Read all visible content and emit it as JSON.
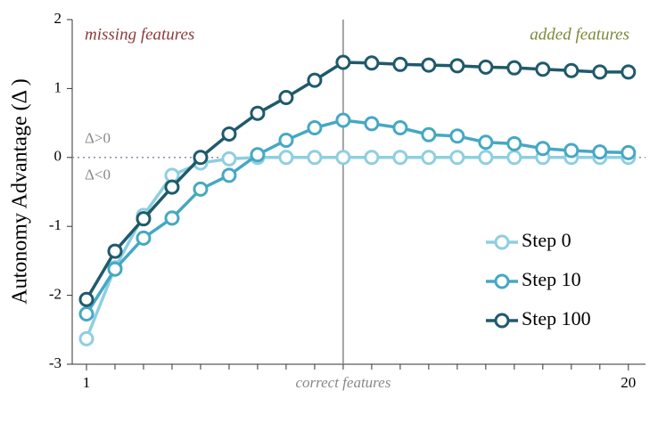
{
  "chart_data": {
    "type": "line",
    "ylabel": "Autonomy Advantage (Δ )",
    "xlabel": "correct features",
    "x": [
      1,
      2,
      3,
      4,
      5,
      6,
      7,
      8,
      9,
      10,
      11,
      12,
      13,
      14,
      15,
      16,
      17,
      18,
      19,
      20
    ],
    "series": [
      {
        "name": "Step 0",
        "color": "#8ecfe0",
        "values": [
          -2.63,
          -1.6,
          -0.84,
          -0.26,
          -0.08,
          -0.02,
          0,
          0,
          0,
          0,
          0,
          0,
          0,
          0,
          0,
          0,
          0,
          0,
          0,
          0
        ]
      },
      {
        "name": "Step 10",
        "color": "#45a8c4",
        "values": [
          -2.27,
          -1.62,
          -1.17,
          -0.88,
          -0.46,
          -0.26,
          0.04,
          0.25,
          0.43,
          0.54,
          0.49,
          0.43,
          0.33,
          0.31,
          0.22,
          0.2,
          0.13,
          0.1,
          0.08,
          0.07
        ]
      },
      {
        "name": "Step 100",
        "color": "#1f5a6b",
        "values": [
          -2.06,
          -1.36,
          -0.89,
          -0.43,
          0,
          0.34,
          0.64,
          0.87,
          1.12,
          1.38,
          1.37,
          1.35,
          1.34,
          1.33,
          1.31,
          1.3,
          1.28,
          1.26,
          1.24,
          1.24
        ]
      }
    ],
    "xlim": [
      0.5,
      20.6
    ],
    "xticks": [
      1,
      20
    ],
    "xminor_ticks": [
      2,
      3,
      4,
      5,
      6,
      7,
      8,
      9,
      10,
      11,
      12,
      13,
      14,
      15,
      16,
      17,
      18,
      19
    ],
    "ylim": [
      -3,
      2
    ],
    "yticks": [
      -3,
      -2,
      -1,
      0,
      1,
      2
    ],
    "vline": 10,
    "hline": 0,
    "annotations": {
      "left": "missing features",
      "right": "added features",
      "above": "Δ>0",
      "below": "Δ<0"
    },
    "legend": "lower right"
  }
}
